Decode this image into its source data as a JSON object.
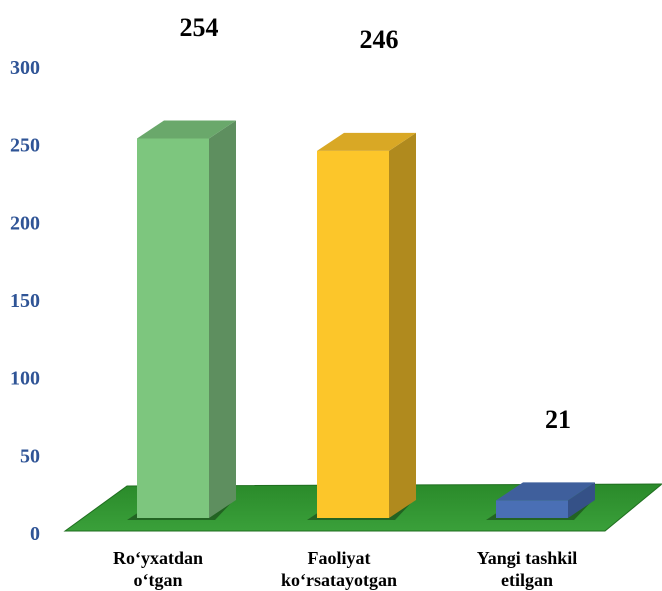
{
  "chart_data": {
    "type": "bar",
    "style": "3d-column",
    "categories": [
      [
        "Ro‘yxatdan",
        "o‘tgan"
      ],
      [
        "Faoliyat",
        "ko‘rsatayotgan"
      ],
      [
        "Yangi tashkil",
        "etilgan"
      ]
    ],
    "values": [
      254,
      246,
      21
    ],
    "data_labels": [
      "254",
      "246",
      "21"
    ],
    "ylim": [
      0,
      300
    ],
    "yticks": [
      0,
      50,
      100,
      150,
      200,
      250,
      300
    ],
    "ytick_labels": [
      "0",
      "50",
      "100",
      "150",
      "200",
      "250",
      "300"
    ],
    "title": "",
    "xlabel": "",
    "ylabel": "",
    "grid": false,
    "legend": "none",
    "colors": {
      "bars": [
        "#7dc67e",
        "#fcc62a",
        "#4a6fb5"
      ],
      "bar_tops": [
        "#6aa86b",
        "#d9a825",
        "#3f5f9c"
      ],
      "bar_sides": [
        "#5e8f5f",
        "#b08a1e",
        "#355187"
      ],
      "floor": "#2d8f2d",
      "floor_edge": "#1f6e1f",
      "tick_text": "#2f5496",
      "label_text": "#000000"
    }
  }
}
